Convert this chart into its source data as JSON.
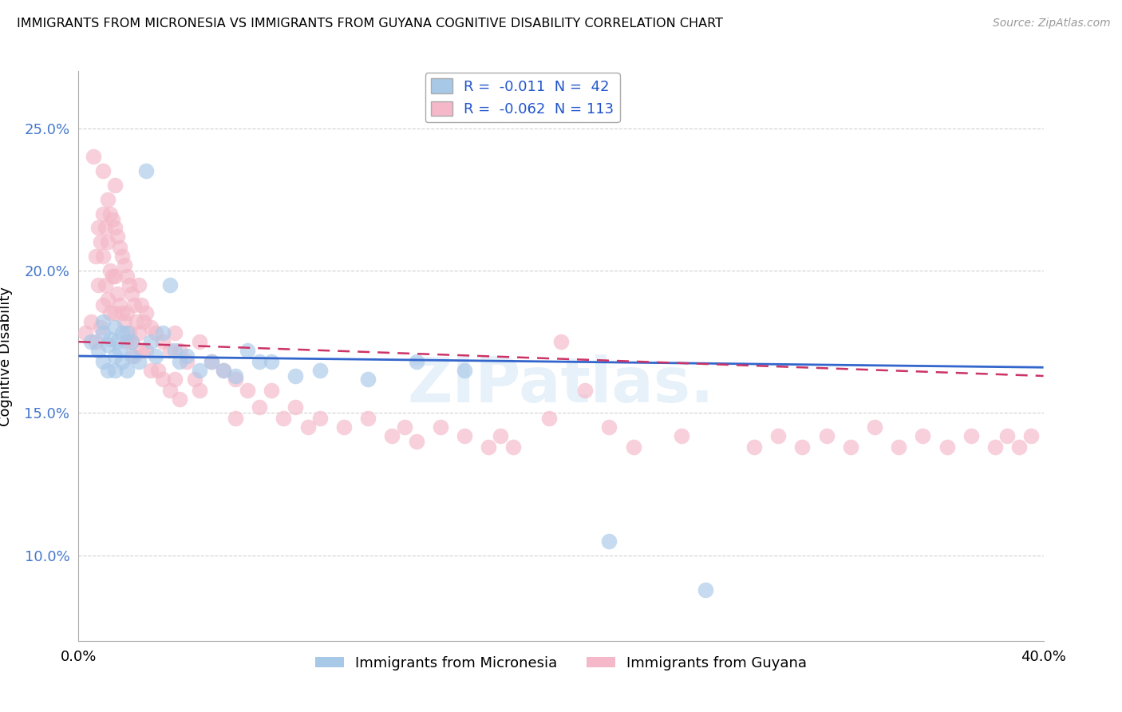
{
  "title": "IMMIGRANTS FROM MICRONESIA VS IMMIGRANTS FROM GUYANA COGNITIVE DISABILITY CORRELATION CHART",
  "source": "Source: ZipAtlas.com",
  "ylabel": "Cognitive Disability",
  "yticks": [
    "10.0%",
    "15.0%",
    "20.0%",
    "25.0%"
  ],
  "ytick_vals": [
    0.1,
    0.15,
    0.2,
    0.25
  ],
  "xlim": [
    0.0,
    0.4
  ],
  "ylim": [
    0.07,
    0.27
  ],
  "color_blue": "#a8c8e8",
  "color_pink": "#f4b8c8",
  "color_blue_line": "#3366cc",
  "color_pink_line": "#cc3366",
  "watermark": "ZIPatlas.",
  "micronesia_x": [
    0.005,
    0.008,
    0.01,
    0.01,
    0.01,
    0.012,
    0.012,
    0.013,
    0.015,
    0.015,
    0.015,
    0.016,
    0.017,
    0.018,
    0.018,
    0.02,
    0.02,
    0.022,
    0.022,
    0.025,
    0.028,
    0.03,
    0.032,
    0.035,
    0.038,
    0.04,
    0.042,
    0.045,
    0.05,
    0.055,
    0.06,
    0.065,
    0.07,
    0.075,
    0.08,
    0.09,
    0.1,
    0.12,
    0.14,
    0.16,
    0.22,
    0.26
  ],
  "micronesia_y": [
    0.175,
    0.172,
    0.178,
    0.182,
    0.168,
    0.174,
    0.165,
    0.176,
    0.18,
    0.17,
    0.165,
    0.175,
    0.172,
    0.168,
    0.178,
    0.178,
    0.165,
    0.17,
    0.175,
    0.168,
    0.235,
    0.175,
    0.17,
    0.178,
    0.195,
    0.172,
    0.168,
    0.17,
    0.165,
    0.168,
    0.165,
    0.163,
    0.172,
    0.168,
    0.168,
    0.163,
    0.165,
    0.162,
    0.168,
    0.165,
    0.105,
    0.088
  ],
  "guyana_x": [
    0.003,
    0.005,
    0.006,
    0.007,
    0.007,
    0.008,
    0.008,
    0.009,
    0.009,
    0.01,
    0.01,
    0.01,
    0.01,
    0.011,
    0.011,
    0.012,
    0.012,
    0.012,
    0.013,
    0.013,
    0.013,
    0.014,
    0.014,
    0.015,
    0.015,
    0.015,
    0.015,
    0.016,
    0.016,
    0.017,
    0.017,
    0.018,
    0.018,
    0.019,
    0.019,
    0.02,
    0.02,
    0.02,
    0.021,
    0.021,
    0.022,
    0.022,
    0.023,
    0.023,
    0.024,
    0.025,
    0.025,
    0.026,
    0.026,
    0.027,
    0.028,
    0.028,
    0.03,
    0.03,
    0.032,
    0.033,
    0.035,
    0.035,
    0.038,
    0.038,
    0.04,
    0.04,
    0.042,
    0.042,
    0.045,
    0.048,
    0.05,
    0.05,
    0.055,
    0.06,
    0.065,
    0.065,
    0.07,
    0.075,
    0.08,
    0.085,
    0.09,
    0.095,
    0.1,
    0.11,
    0.12,
    0.13,
    0.135,
    0.14,
    0.15,
    0.16,
    0.17,
    0.175,
    0.18,
    0.195,
    0.2,
    0.21,
    0.22,
    0.23,
    0.25,
    0.28,
    0.29,
    0.3,
    0.31,
    0.32,
    0.33,
    0.34,
    0.35,
    0.36,
    0.37,
    0.38,
    0.385,
    0.39,
    0.395
  ],
  "guyana_y": [
    0.178,
    0.182,
    0.24,
    0.175,
    0.205,
    0.215,
    0.195,
    0.18,
    0.21,
    0.235,
    0.22,
    0.205,
    0.188,
    0.215,
    0.195,
    0.225,
    0.21,
    0.19,
    0.22,
    0.2,
    0.185,
    0.218,
    0.198,
    0.23,
    0.215,
    0.198,
    0.185,
    0.212,
    0.192,
    0.208,
    0.188,
    0.205,
    0.185,
    0.202,
    0.182,
    0.198,
    0.185,
    0.175,
    0.195,
    0.178,
    0.192,
    0.175,
    0.188,
    0.17,
    0.182,
    0.195,
    0.178,
    0.188,
    0.172,
    0.182,
    0.185,
    0.172,
    0.18,
    0.165,
    0.178,
    0.165,
    0.175,
    0.162,
    0.172,
    0.158,
    0.178,
    0.162,
    0.172,
    0.155,
    0.168,
    0.162,
    0.175,
    0.158,
    0.168,
    0.165,
    0.162,
    0.148,
    0.158,
    0.152,
    0.158,
    0.148,
    0.152,
    0.145,
    0.148,
    0.145,
    0.148,
    0.142,
    0.145,
    0.14,
    0.145,
    0.142,
    0.138,
    0.142,
    0.138,
    0.148,
    0.175,
    0.158,
    0.145,
    0.138,
    0.142,
    0.138,
    0.142,
    0.138,
    0.142,
    0.138,
    0.145,
    0.138,
    0.142,
    0.138,
    0.142,
    0.138,
    0.142,
    0.138,
    0.142
  ]
}
